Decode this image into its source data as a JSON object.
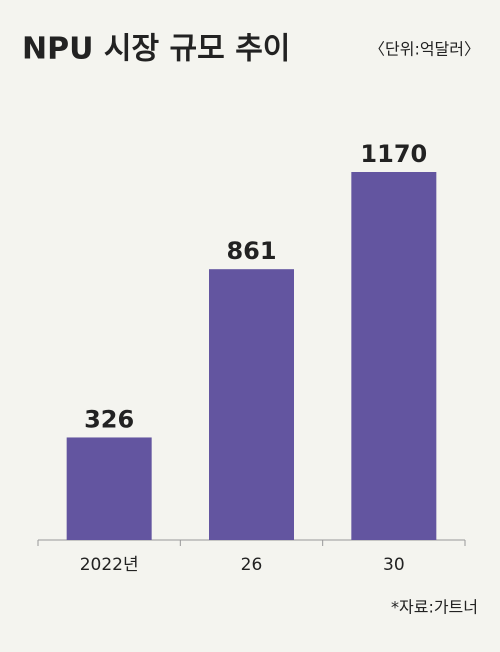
{
  "chart_data": {
    "type": "bar",
    "title": "NPU 시장 규모 추이",
    "unit": "〈단위:억달러〉",
    "categories": [
      "2022년",
      "26",
      "30"
    ],
    "values": [
      326,
      861,
      1170
    ],
    "color": "#6355a0",
    "source": "*자료:가트너"
  }
}
